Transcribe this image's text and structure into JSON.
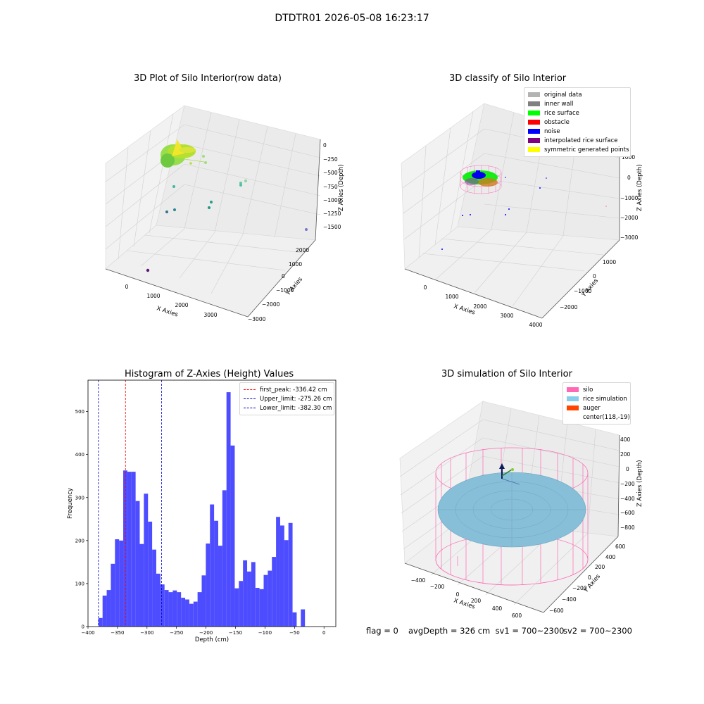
{
  "suptitle": "DTDTR01 2026-05-08 16:23:17",
  "panels": {
    "raw": {
      "title": "3D Plot of Silo Interior(row data)",
      "xlabel": "X Axies",
      "ylabel": "Y Axies",
      "zlabel": "Z Axies (Depth)",
      "x_ticks": [
        "0",
        "1000",
        "2000",
        "3000"
      ],
      "y_ticks": [
        "2000",
        "1000",
        "0",
        "−1000",
        "−2000",
        "−3000"
      ],
      "z_ticks": [
        "0",
        "−250",
        "−500",
        "−750",
        "−1000",
        "−1250",
        "−1500"
      ]
    },
    "classify": {
      "title": "3D classify of Silo Interior",
      "xlabel": "X Axies",
      "ylabel": "Y Axies",
      "zlabel": "Z Axies (Depth)",
      "x_ticks": [
        "0",
        "1000",
        "2000",
        "3000",
        "4000"
      ],
      "y_ticks": [
        "1000",
        "0",
        "−1000",
        "−2000"
      ],
      "z_ticks": [
        "1000",
        "0",
        "−1000",
        "−2000",
        "−3000"
      ],
      "legend": [
        {
          "label": "original data",
          "color": "#b3b3b3"
        },
        {
          "label": "inner wall",
          "color": "#808080"
        },
        {
          "label": "rice surface",
          "color": "#00ff00"
        },
        {
          "label": "obstacle",
          "color": "#ff0000"
        },
        {
          "label": "noise",
          "color": "#0000ff"
        },
        {
          "label": "interpolated rice surface",
          "color": "#800080"
        },
        {
          "label": "symmetric generated points",
          "color": "#ffff00"
        }
      ]
    },
    "simulation": {
      "title": "3D simulation of Silo Interior",
      "xlabel": "X Axies",
      "ylabel": "Y Axies",
      "zlabel": "Z Axies (Depth)",
      "x_ticks": [
        "−400",
        "−200",
        "0",
        "200",
        "400",
        "600"
      ],
      "y_ticks": [
        "600",
        "400",
        "200",
        "0",
        "−200",
        "−400",
        "−600"
      ],
      "z_ticks": [
        "400",
        "200",
        "0",
        "−200",
        "−400",
        "−600",
        "−800"
      ],
      "legend": [
        {
          "label": "silo",
          "color": "#ff69b4"
        },
        {
          "label": "rice simulation",
          "color": "#87ceeb"
        },
        {
          "label": "auger",
          "color": "#ff4500"
        },
        {
          "label": "center(118,-19)",
          "color": "none"
        }
      ]
    }
  },
  "chart_data": {
    "type": "bar",
    "title": "Histogram of Z-Axies (Height) Values",
    "xlabel": "Depth (cm)",
    "ylabel": "Frequency",
    "xlim": [
      -400,
      20
    ],
    "ylim": [
      0,
      573
    ],
    "x_ticks": [
      -400,
      -350,
      -300,
      -250,
      -200,
      -150,
      -100,
      -50,
      0
    ],
    "y_ticks": [
      0,
      100,
      200,
      300,
      400,
      500
    ],
    "bin_width": 7,
    "bins": [
      {
        "x0": -382.3,
        "value": 20
      },
      {
        "x0": -375.3,
        "value": 72
      },
      {
        "x0": -368.3,
        "value": 85
      },
      {
        "x0": -361.3,
        "value": 146
      },
      {
        "x0": -354.3,
        "value": 203
      },
      {
        "x0": -347.3,
        "value": 200
      },
      {
        "x0": -340.3,
        "value": 363
      },
      {
        "x0": -333.3,
        "value": 360
      },
      {
        "x0": -326.3,
        "value": 360
      },
      {
        "x0": -319.3,
        "value": 292
      },
      {
        "x0": -312.3,
        "value": 192
      },
      {
        "x0": -305.3,
        "value": 309
      },
      {
        "x0": -298.3,
        "value": 244
      },
      {
        "x0": -291.3,
        "value": 179
      },
      {
        "x0": -284.3,
        "value": 123
      },
      {
        "x0": -277.3,
        "value": 98
      },
      {
        "x0": -270.3,
        "value": 85
      },
      {
        "x0": -263.3,
        "value": 80
      },
      {
        "x0": -256.3,
        "value": 84
      },
      {
        "x0": -249.3,
        "value": 80
      },
      {
        "x0": -242.3,
        "value": 67
      },
      {
        "x0": -235.3,
        "value": 63
      },
      {
        "x0": -228.3,
        "value": 53
      },
      {
        "x0": -221.3,
        "value": 58
      },
      {
        "x0": -214.3,
        "value": 80
      },
      {
        "x0": -207.3,
        "value": 119
      },
      {
        "x0": -200.3,
        "value": 193
      },
      {
        "x0": -193.3,
        "value": 284
      },
      {
        "x0": -186.3,
        "value": 246
      },
      {
        "x0": -179.3,
        "value": 188
      },
      {
        "x0": -172.3,
        "value": 317
      },
      {
        "x0": -165.3,
        "value": 545
      },
      {
        "x0": -158.3,
        "value": 421
      },
      {
        "x0": -151.3,
        "value": 89
      },
      {
        "x0": -144.3,
        "value": 106
      },
      {
        "x0": -137.3,
        "value": 154
      },
      {
        "x0": -130.3,
        "value": 128
      },
      {
        "x0": -123.3,
        "value": 150
      },
      {
        "x0": -116.3,
        "value": 90
      },
      {
        "x0": -109.3,
        "value": 87
      },
      {
        "x0": -102.3,
        "value": 120
      },
      {
        "x0": -95.3,
        "value": 130
      },
      {
        "x0": -88.3,
        "value": 162
      },
      {
        "x0": -81.3,
        "value": 255
      },
      {
        "x0": -74.3,
        "value": 235
      },
      {
        "x0": -67.3,
        "value": 201
      },
      {
        "x0": -60.3,
        "value": 241
      },
      {
        "x0": -53.3,
        "value": 33
      },
      {
        "x0": -46.3,
        "value": 0
      },
      {
        "x0": -39.3,
        "value": 40
      }
    ],
    "bar_color": "#4d4dff",
    "vlines": [
      {
        "name": "first_peak: -336.42 cm",
        "x": -336.42,
        "color": "#ff0000"
      },
      {
        "name": "Upper_limit: -275.26 cm",
        "x": -275.26,
        "color": "#0000cc"
      },
      {
        "name": "Lower_limit: -382.30 cm",
        "x": -382.3,
        "color": "#0000cc"
      }
    ],
    "legend_position": "top-right"
  },
  "status": {
    "flag": "flag = 0",
    "avg": "avgDepth = 326 cm  sv1 = 700~2300",
    "sv2": "sv2 = 700~2300"
  }
}
